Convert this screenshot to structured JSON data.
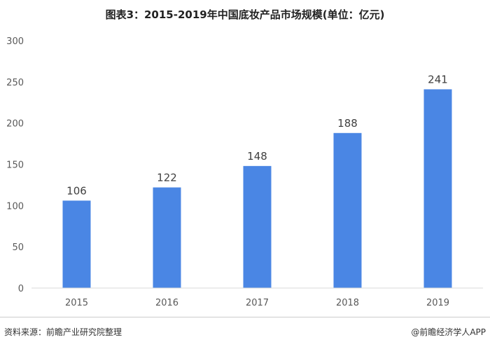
{
  "chart_data": {
    "type": "bar",
    "title": "图表3：2015-2019年中国底妆产品市场规模(单位：亿元)",
    "categories": [
      "2015",
      "2016",
      "2017",
      "2018",
      "2019"
    ],
    "values": [
      106,
      122,
      148,
      188,
      241
    ],
    "data_labels": [
      "106",
      "122",
      "148",
      "188",
      "241"
    ],
    "y_ticks": [
      0,
      50,
      100,
      150,
      200,
      250,
      300
    ],
    "ylim": [
      0,
      300
    ],
    "xlabel": "",
    "ylabel": "",
    "grid": false,
    "bar_color": "#4a86e4"
  },
  "footer": {
    "source": "资料来源：前瞻产业研究院整理",
    "brand": "@前瞻经济学人APP"
  }
}
